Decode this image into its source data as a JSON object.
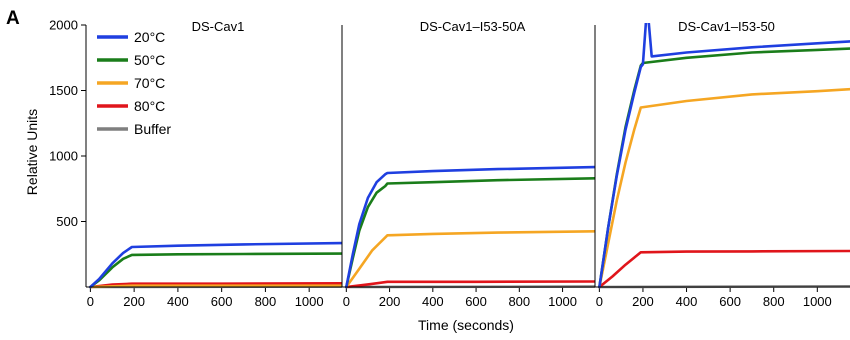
{
  "panel_label": "A",
  "y_axis_label": "Relative Units",
  "x_axis_label": "Time (seconds)",
  "colors": {
    "20C": "#1f3fe0",
    "50C": "#1a7d1a",
    "70C": "#f5a623",
    "80C": "#e0151b",
    "Buffer": "#7f7f7f"
  },
  "legend": [
    {
      "key": "20C",
      "label": "20°C"
    },
    {
      "key": "50C",
      "label": "50°C"
    },
    {
      "key": "70C",
      "label": "70°C"
    },
    {
      "key": "80C",
      "label": "80°C"
    },
    {
      "key": "Buffer",
      "label": "Buffer"
    }
  ],
  "chart_data": [
    {
      "type": "line",
      "title": "DS-Cav1",
      "xlim": [
        -20,
        1150
      ],
      "ylim": [
        0,
        2000
      ],
      "x_ticks": [
        0,
        200,
        400,
        600,
        800,
        1000
      ],
      "y_ticks": [
        500,
        1000,
        1500,
        2000
      ],
      "series": [
        {
          "name": "20°C",
          "key": "20C",
          "points": [
            [
              0,
              0
            ],
            [
              40,
              60
            ],
            [
              100,
              180
            ],
            [
              150,
              260
            ],
            [
              190,
              305
            ],
            [
              400,
              315
            ],
            [
              700,
              325
            ],
            [
              1150,
              335
            ]
          ]
        },
        {
          "name": "50°C",
          "key": "50C",
          "points": [
            [
              0,
              0
            ],
            [
              40,
              50
            ],
            [
              100,
              150
            ],
            [
              150,
              215
            ],
            [
              190,
              245
            ],
            [
              400,
              250
            ],
            [
              700,
              252
            ],
            [
              1150,
              255
            ]
          ]
        },
        {
          "name": "70°C",
          "key": "70C",
          "points": [
            [
              0,
              0
            ],
            [
              190,
              10
            ],
            [
              1150,
              10
            ]
          ]
        },
        {
          "name": "80°C",
          "key": "80C",
          "points": [
            [
              0,
              0
            ],
            [
              100,
              18
            ],
            [
              190,
              25
            ],
            [
              600,
              25
            ],
            [
              1150,
              28
            ]
          ]
        },
        {
          "name": "Buffer",
          "key": "Buffer",
          "points": [
            [
              0,
              0
            ],
            [
              1150,
              3
            ]
          ]
        }
      ]
    },
    {
      "type": "line",
      "title": "DS-Cav1–I53-50A",
      "xlim": [
        -20,
        1150
      ],
      "ylim": [
        0,
        2000
      ],
      "x_ticks": [
        0,
        200,
        400,
        600,
        800,
        1000
      ],
      "y_ticks": [],
      "series": [
        {
          "name": "20°C",
          "key": "20C",
          "points": [
            [
              0,
              0
            ],
            [
              30,
              250
            ],
            [
              60,
              480
            ],
            [
              100,
              680
            ],
            [
              140,
              800
            ],
            [
              180,
              860
            ],
            [
              190,
              870
            ],
            [
              400,
              885
            ],
            [
              700,
              900
            ],
            [
              1150,
              915
            ]
          ]
        },
        {
          "name": "50°C",
          "key": "50C",
          "points": [
            [
              0,
              0
            ],
            [
              30,
              220
            ],
            [
              60,
              430
            ],
            [
              100,
              610
            ],
            [
              140,
              720
            ],
            [
              180,
              770
            ],
            [
              190,
              790
            ],
            [
              400,
              800
            ],
            [
              700,
              815
            ],
            [
              1150,
              830
            ]
          ]
        },
        {
          "name": "70°C",
          "key": "70C",
          "points": [
            [
              0,
              0
            ],
            [
              60,
              140
            ],
            [
              120,
              280
            ],
            [
              190,
              395
            ],
            [
              400,
              405
            ],
            [
              700,
              415
            ],
            [
              1150,
              425
            ]
          ]
        },
        {
          "name": "80°C",
          "key": "80C",
          "points": [
            [
              0,
              0
            ],
            [
              100,
              20
            ],
            [
              190,
              40
            ],
            [
              600,
              40
            ],
            [
              1150,
              42
            ]
          ]
        },
        {
          "name": "Buffer",
          "key": "Buffer",
          "points": [
            [
              0,
              0
            ],
            [
              1150,
              3
            ]
          ]
        }
      ]
    },
    {
      "type": "line",
      "title": "DS-Cav1–I53-50",
      "xlim": [
        -20,
        1150
      ],
      "ylim": [
        0,
        2000
      ],
      "x_ticks": [
        0,
        200,
        400,
        600,
        800,
        1000
      ],
      "y_ticks": [],
      "series": [
        {
          "name": "20°C",
          "key": "20C",
          "points": [
            [
              0,
              0
            ],
            [
              40,
              450
            ],
            [
              80,
              850
            ],
            [
              120,
              1200
            ],
            [
              160,
              1480
            ],
            [
              190,
              1680
            ],
            [
              200,
              1700
            ],
            [
              215,
              2050
            ],
            [
              225,
              2050
            ],
            [
              240,
              1760
            ],
            [
              400,
              1790
            ],
            [
              700,
              1830
            ],
            [
              1000,
              1860
            ],
            [
              1150,
              1875
            ]
          ]
        },
        {
          "name": "50°C",
          "key": "50C",
          "points": [
            [
              0,
              0
            ],
            [
              40,
              450
            ],
            [
              80,
              860
            ],
            [
              120,
              1220
            ],
            [
              160,
              1500
            ],
            [
              190,
              1690
            ],
            [
              200,
              1710
            ],
            [
              400,
              1750
            ],
            [
              700,
              1790
            ],
            [
              1000,
              1810
            ],
            [
              1150,
              1820
            ]
          ]
        },
        {
          "name": "70°C",
          "key": "70C",
          "points": [
            [
              0,
              0
            ],
            [
              40,
              330
            ],
            [
              80,
              660
            ],
            [
              120,
              950
            ],
            [
              160,
              1200
            ],
            [
              190,
              1370
            ],
            [
              400,
              1420
            ],
            [
              700,
              1470
            ],
            [
              1000,
              1495
            ],
            [
              1150,
              1510
            ]
          ]
        },
        {
          "name": "80°C",
          "key": "80C",
          "points": [
            [
              0,
              0
            ],
            [
              60,
              80
            ],
            [
              120,
              170
            ],
            [
              190,
              265
            ],
            [
              400,
              270
            ],
            [
              700,
              272
            ],
            [
              1150,
              275
            ]
          ]
        },
        {
          "name": "Buffer",
          "key": "Buffer",
          "points": [
            [
              0,
              0
            ],
            [
              1150,
              5
            ]
          ]
        }
      ]
    }
  ]
}
